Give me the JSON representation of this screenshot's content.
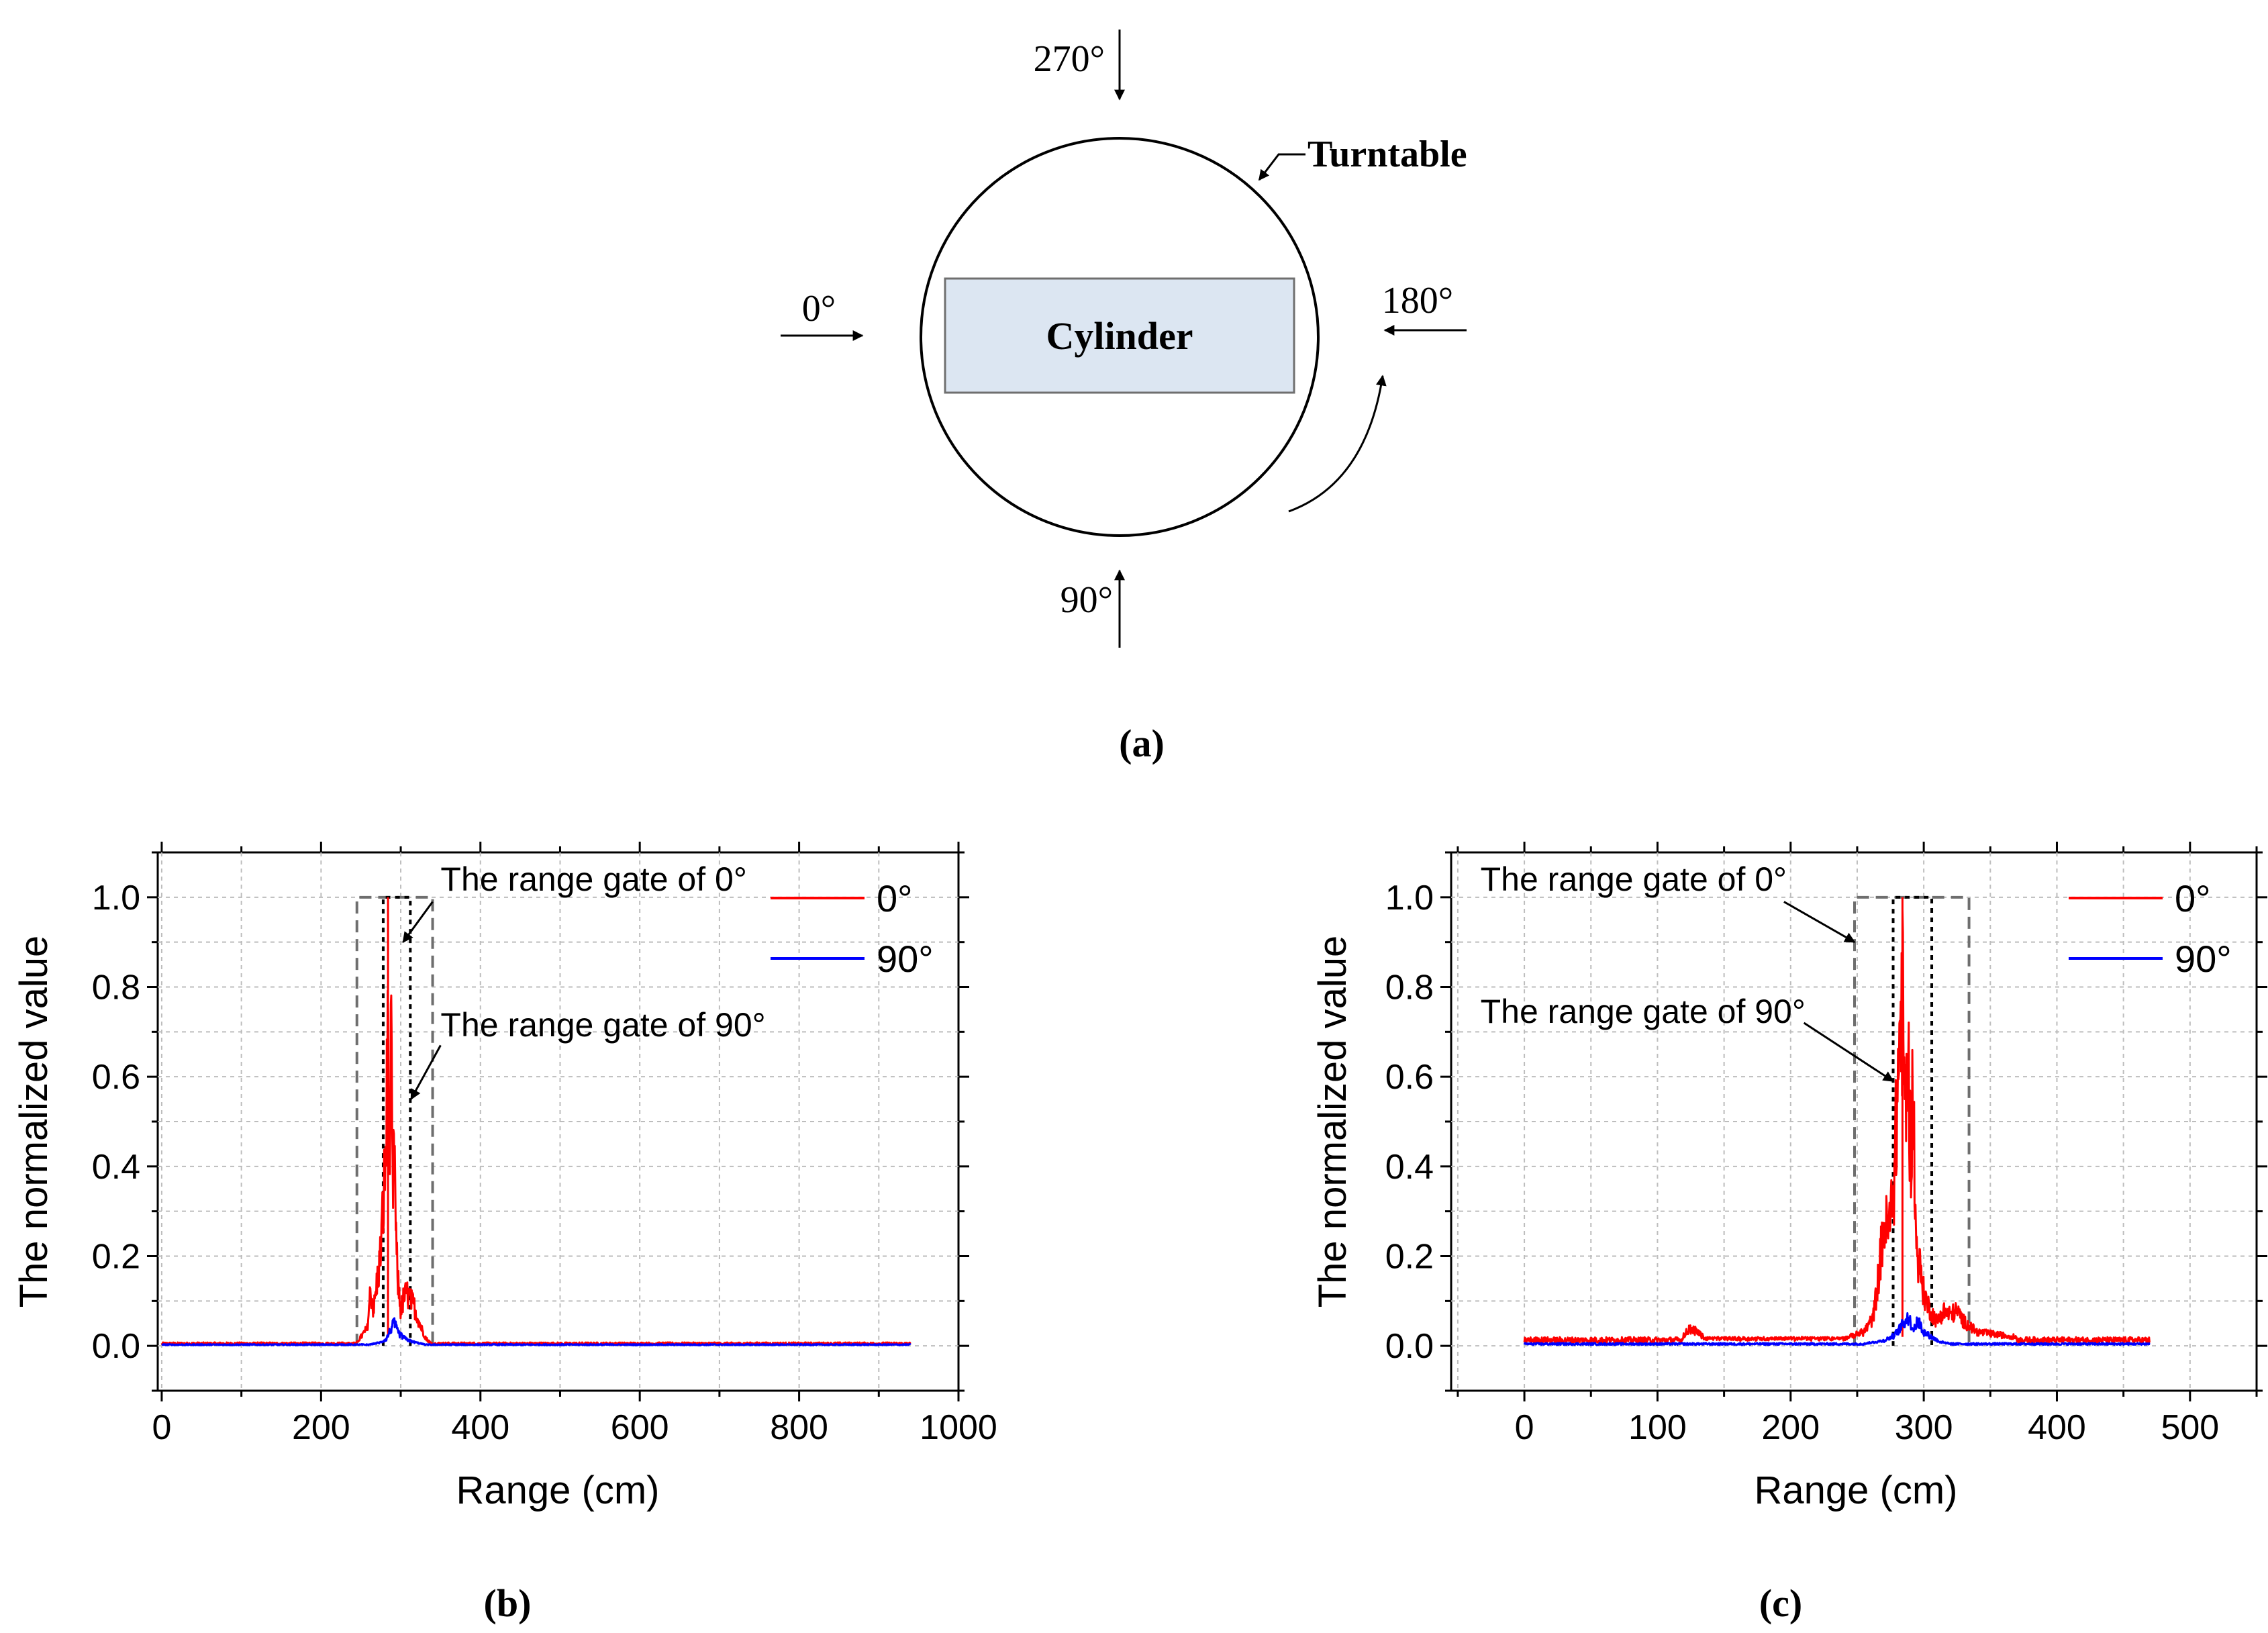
{
  "diagram": {
    "caption": "(a)",
    "turntable_label": "Turntable",
    "cylinder_label": "Cylinder",
    "angles": {
      "top": "270°",
      "left": "0°",
      "right": "180°",
      "bottom": "90°"
    },
    "colors": {
      "cylinder_fill": "#dce6f2",
      "cylinder_stroke": "#6f6f6f",
      "line": "#000000"
    }
  },
  "chart_data": [
    {
      "id": "b",
      "type": "line",
      "caption": "(b)",
      "xlabel": "Range (cm)",
      "ylabel": "The normalized value",
      "xlim": [
        -5,
        1000
      ],
      "ylim": [
        -0.1,
        1.1
      ],
      "xticks": [
        0,
        200,
        400,
        600,
        800,
        1000
      ],
      "xticks_minor": [
        100,
        300,
        500,
        700,
        900
      ],
      "yticks": [
        0.0,
        0.2,
        0.4,
        0.6,
        0.8,
        1.0
      ],
      "ytick_labels": [
        "0.0",
        "0.2",
        "0.4",
        "0.6",
        "0.8",
        "1.0"
      ],
      "grid": true,
      "legend_position": "top-right",
      "x_max": 940,
      "series": [
        {
          "name": "0°",
          "color": "#ff0000",
          "baseline": 0.006,
          "x": [
            245,
            258,
            262,
            266,
            270,
            274,
            278,
            282,
            284,
            286,
            288,
            290,
            292,
            294,
            296,
            300,
            304,
            308,
            312,
            316,
            320,
            326,
            332,
            338
          ],
          "y": [
            0.01,
            0.05,
            0.16,
            0.1,
            0.18,
            0.25,
            0.4,
            0.6,
            1.0,
            0.55,
            0.83,
            0.4,
            0.6,
            0.3,
            0.2,
            0.1,
            0.14,
            0.15,
            0.13,
            0.12,
            0.09,
            0.05,
            0.02,
            0.008
          ]
        },
        {
          "name": "90°",
          "color": "#0000ff",
          "baseline": 0.003,
          "x": [
            260,
            275,
            282,
            288,
            292,
            296,
            300,
            306,
            314,
            322,
            330
          ],
          "y": [
            0.003,
            0.01,
            0.02,
            0.05,
            0.065,
            0.04,
            0.03,
            0.02,
            0.012,
            0.008,
            0.004
          ]
        }
      ],
      "range_gates": [
        {
          "x0": 245,
          "x1": 340,
          "style": "gray-dashed"
        },
        {
          "x0": 278,
          "x1": 312,
          "style": "black-dotted"
        }
      ],
      "annotations": [
        {
          "text": "The range gate of 0°",
          "text_x": 350,
          "text_y": 1.015,
          "arrow_from": [
            340,
            0.99
          ],
          "arrow_to": [
            303,
            0.9
          ]
        },
        {
          "text": "The range gate of 90°",
          "text_x": 350,
          "text_y": 0.69,
          "arrow_from": [
            350,
            0.67
          ],
          "arrow_to": [
            313,
            0.55
          ]
        }
      ]
    },
    {
      "id": "c",
      "type": "line",
      "caption": "(c)",
      "xlabel": "Range (cm)",
      "ylabel": "The normalized value",
      "xlim": [
        -55,
        550
      ],
      "ylim": [
        -0.1,
        1.1
      ],
      "xticks": [
        0,
        100,
        200,
        300,
        400,
        500
      ],
      "xticks_minor": [
        -50,
        50,
        150,
        250,
        350,
        450,
        550
      ],
      "yticks": [
        0.0,
        0.2,
        0.4,
        0.6,
        0.8,
        1.0
      ],
      "ytick_labels": [
        "0.0",
        "0.2",
        "0.4",
        "0.6",
        "0.8",
        "1.0"
      ],
      "grid": true,
      "legend_position": "top-right",
      "x_max": 470,
      "series": [
        {
          "name": "0°",
          "color": "#ff0000",
          "baseline": 0.015,
          "x": [
            118,
            124,
            130,
            136,
            240,
            255,
            262,
            266,
            270,
            274,
            278,
            282,
            284,
            286,
            288,
            290,
            292,
            294,
            296,
            300,
            305,
            310,
            315,
            320,
            325,
            330,
            340,
            360,
            370
          ],
          "y": [
            0.02,
            0.05,
            0.04,
            0.02,
            0.02,
            0.04,
            0.08,
            0.2,
            0.35,
            0.33,
            0.5,
            0.9,
            1.0,
            0.65,
            0.88,
            0.55,
            0.75,
            0.3,
            0.25,
            0.15,
            0.1,
            0.07,
            0.1,
            0.09,
            0.1,
            0.07,
            0.04,
            0.03,
            0.025
          ]
        },
        {
          "name": "90°",
          "color": "#0000ff",
          "baseline": 0.005,
          "x": [
            255,
            270,
            278,
            284,
            288,
            292,
            296,
            300,
            306,
            312,
            320
          ],
          "y": [
            0.006,
            0.015,
            0.03,
            0.06,
            0.085,
            0.05,
            0.07,
            0.04,
            0.025,
            0.012,
            0.006
          ]
        }
      ],
      "range_gates": [
        {
          "x0": 248,
          "x1": 334,
          "style": "gray-dashed"
        },
        {
          "x0": 277,
          "x1": 306,
          "style": "black-dotted"
        }
      ],
      "annotations": [
        {
          "text": "The range gate of 0°",
          "text_x": -33,
          "text_y": 1.015,
          "arrow_from": [
            195,
            0.99
          ],
          "arrow_to": [
            248,
            0.9
          ]
        },
        {
          "text": "The range gate of 90°",
          "text_x": -33,
          "text_y": 0.72,
          "arrow_from": [
            210,
            0.72
          ],
          "arrow_to": [
            277,
            0.59
          ]
        }
      ]
    }
  ]
}
